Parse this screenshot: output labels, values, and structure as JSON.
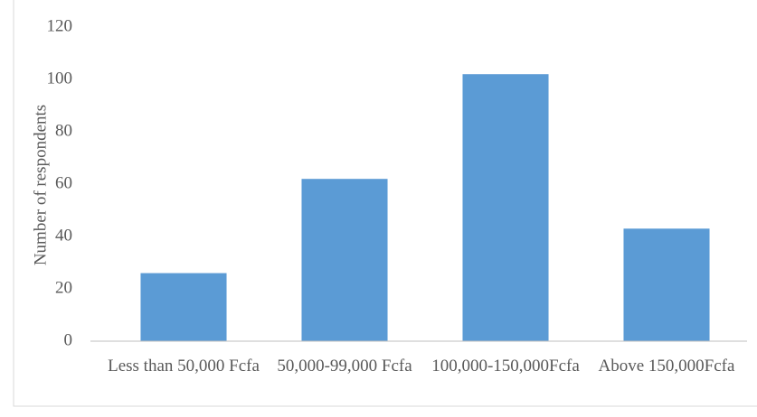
{
  "chart_data": {
    "type": "bar",
    "y_label": "Number of respondents",
    "categories": [
      "Less than 50,000 Fcfa",
      "50,000-99,000 Fcfa",
      "100,000-150,000Fcfa",
      "Above 150,000Fcfa"
    ],
    "values": [
      26,
      62,
      102,
      43
    ],
    "color": "#5b9bd5",
    "ylim": [
      0,
      120
    ],
    "yticks": [
      0,
      20,
      40,
      60,
      80,
      100,
      120
    ],
    "grid": false
  }
}
